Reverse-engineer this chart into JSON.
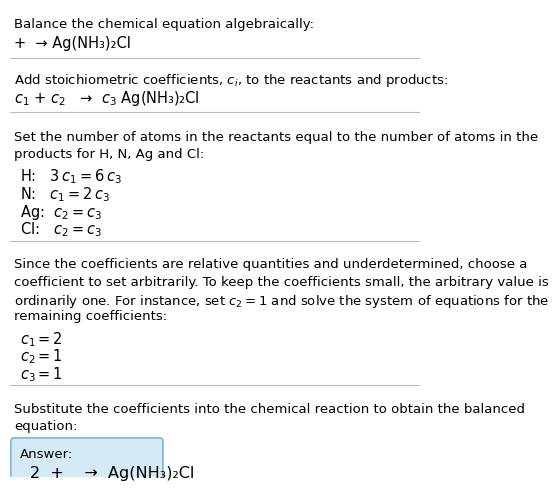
{
  "title": "Balance the chemical equation algebraically:",
  "line1": "+  → Ag(NH₃)₂Cl",
  "section2_header": "Add stoichiometric coefficients, $c_i$, to the reactants and products:",
  "section2_line": "$c_1$ + $c_2$   →  $c_3$ Ag(NH₃)₂Cl",
  "section3_header_lines": [
    "Set the number of atoms in the reactants equal to the number of atoms in the",
    "products for H, N, Ag and Cl:"
  ],
  "section3_lines": [
    "H:   $3\\,c_1 = 6\\,c_3$",
    "N:   $c_1 = 2\\,c_3$",
    "Ag:  $c_2 = c_3$",
    "Cl:   $c_2 = c_3$"
  ],
  "section4_header_lines": [
    "Since the coefficients are relative quantities and underdetermined, choose a",
    "coefficient to set arbitrarily. To keep the coefficients small, the arbitrary value is",
    "ordinarily one. For instance, set $c_2 = 1$ and solve the system of equations for the",
    "remaining coefficients:"
  ],
  "section4_lines": [
    "$c_1 = 2$",
    "$c_2 = 1$",
    "$c_3 = 1$"
  ],
  "section5_header_lines": [
    "Substitute the coefficients into the chemical reaction to obtain the balanced",
    "equation:"
  ],
  "answer_label": "Answer:",
  "answer_line": "2  +    →  Ag(NH₃)₂Cl",
  "bg_color": "#ffffff",
  "text_color": "#000000",
  "divider_color": "#bbbbbb",
  "answer_box_facecolor": "#d4ebf7",
  "answer_box_edgecolor": "#82bcd1",
  "font_size_body": 9.5,
  "font_size_eq": 10.5
}
